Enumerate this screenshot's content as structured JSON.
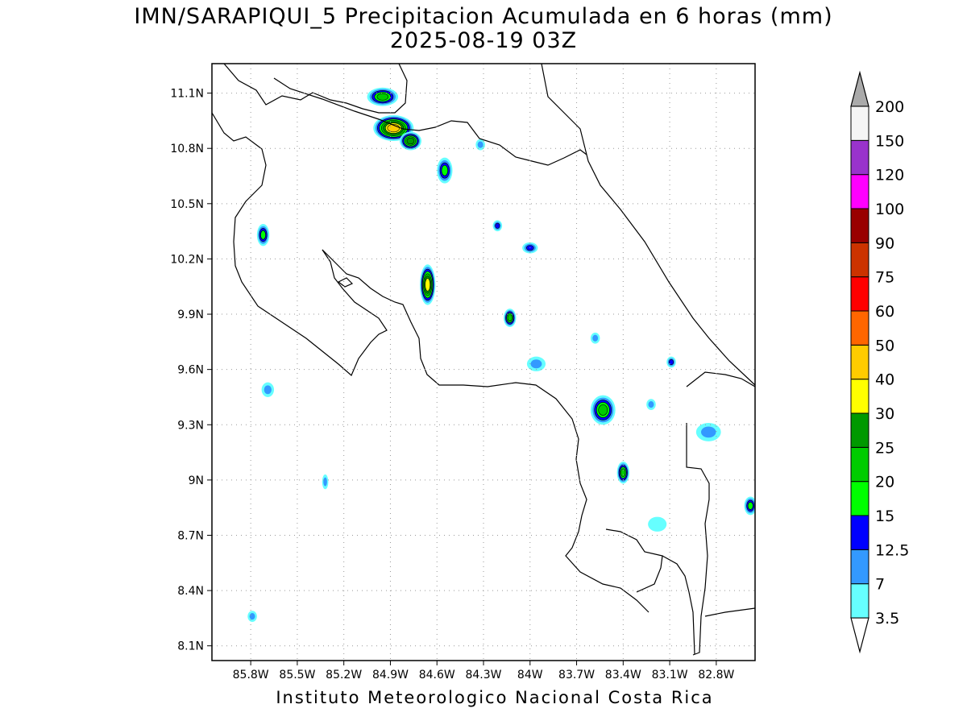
{
  "title_line1": "IMN/SARAPIQUI_5 Precipitacion Acumulada en 6 horas (mm)",
  "title_line2": "2025-08-19 03Z",
  "footer": "Instituto Meteorologico Nacional Costa Rica",
  "map": {
    "lon_range": [
      -86.05,
      -82.55
    ],
    "lat_range": [
      8.02,
      11.26
    ],
    "x_ticks": [
      "85.8W",
      "85.5W",
      "85.2W",
      "84.9W",
      "84.6W",
      "84.3W",
      "84W",
      "83.7W",
      "83.4W",
      "83.1W",
      "82.8W"
    ],
    "x_tick_values": [
      -85.8,
      -85.5,
      -85.2,
      -84.9,
      -84.6,
      -84.3,
      -84.0,
      -83.7,
      -83.4,
      -83.1,
      -82.8
    ],
    "y_ticks": [
      "11.1N",
      "10.8N",
      "10.5N",
      "10.2N",
      "9.9N",
      "9.6N",
      "9.3N",
      "9N",
      "8.7N",
      "8.4N",
      "8.1N"
    ],
    "y_tick_values": [
      11.1,
      10.8,
      10.5,
      10.2,
      9.9,
      9.6,
      9.3,
      9.0,
      8.7,
      8.4,
      8.1
    ],
    "grid": "dotted",
    "precip_cells": [
      {
        "lon": -84.95,
        "lat": 11.08,
        "rx": 0.1,
        "ry": 0.05,
        "max": 20
      },
      {
        "lon": -84.88,
        "lat": 10.91,
        "rx": 0.13,
        "ry": 0.07,
        "max": 40
      },
      {
        "lon": -84.77,
        "lat": 10.84,
        "rx": 0.07,
        "ry": 0.05,
        "max": 25
      },
      {
        "lon": -84.55,
        "lat": 10.68,
        "rx": 0.05,
        "ry": 0.07,
        "max": 15
      },
      {
        "lon": -85.72,
        "lat": 10.33,
        "rx": 0.04,
        "ry": 0.06,
        "max": 15
      },
      {
        "lon": -84.66,
        "lat": 10.06,
        "rx": 0.05,
        "ry": 0.11,
        "max": 30
      },
      {
        "lon": -84.13,
        "lat": 9.88,
        "rx": 0.04,
        "ry": 0.05,
        "max": 20
      },
      {
        "lon": -84.21,
        "lat": 10.38,
        "rx": 0.03,
        "ry": 0.03,
        "max": 12.5
      },
      {
        "lon": -84.0,
        "lat": 10.26,
        "rx": 0.05,
        "ry": 0.03,
        "max": 12.5
      },
      {
        "lon": -83.53,
        "lat": 9.38,
        "rx": 0.08,
        "ry": 0.08,
        "max": 20
      },
      {
        "lon": -83.4,
        "lat": 9.04,
        "rx": 0.04,
        "ry": 0.06,
        "max": 20
      },
      {
        "lon": -83.09,
        "lat": 9.64,
        "rx": 0.03,
        "ry": 0.03,
        "max": 12.5
      },
      {
        "lon": -82.58,
        "lat": 8.86,
        "rx": 0.04,
        "ry": 0.05,
        "max": 15
      },
      {
        "lon": -85.69,
        "lat": 9.49,
        "rx": 0.04,
        "ry": 0.04,
        "max": 7
      },
      {
        "lon": -83.58,
        "lat": 9.77,
        "rx": 0.03,
        "ry": 0.03,
        "max": 7
      },
      {
        "lon": -82.85,
        "lat": 9.26,
        "rx": 0.08,
        "ry": 0.05,
        "max": 7
      },
      {
        "lon": -83.96,
        "lat": 9.63,
        "rx": 0.06,
        "ry": 0.04,
        "max": 7
      },
      {
        "lon": -85.79,
        "lat": 8.26,
        "rx": 0.03,
        "ry": 0.03,
        "max": 7
      },
      {
        "lon": -84.32,
        "lat": 10.82,
        "rx": 0.03,
        "ry": 0.03,
        "max": 7
      },
      {
        "lon": -85.32,
        "lat": 8.99,
        "rx": 0.02,
        "ry": 0.04,
        "max": 7
      },
      {
        "lon": -83.18,
        "lat": 8.76,
        "rx": 0.06,
        "ry": 0.04,
        "max": 3.5
      },
      {
        "lon": -83.22,
        "lat": 9.41,
        "rx": 0.03,
        "ry": 0.03,
        "max": 7
      }
    ]
  },
  "colorbar": {
    "labels": [
      "3.5",
      "7",
      "12.5",
      "15",
      "20",
      "25",
      "30",
      "40",
      "50",
      "60",
      "75",
      "90",
      "100",
      "120",
      "150",
      "200"
    ],
    "colors": [
      "#66ffff",
      "#3399ff",
      "#0000ff",
      "#00ff00",
      "#00cc00",
      "#009900",
      "#ffff00",
      "#ffcc00",
      "#ff6600",
      "#ff0000",
      "#cc3300",
      "#990000",
      "#ff00ff",
      "#9933cc",
      "#f5f5f5"
    ],
    "over_color": "#aaaaaa",
    "under_color": "#ffffff"
  }
}
